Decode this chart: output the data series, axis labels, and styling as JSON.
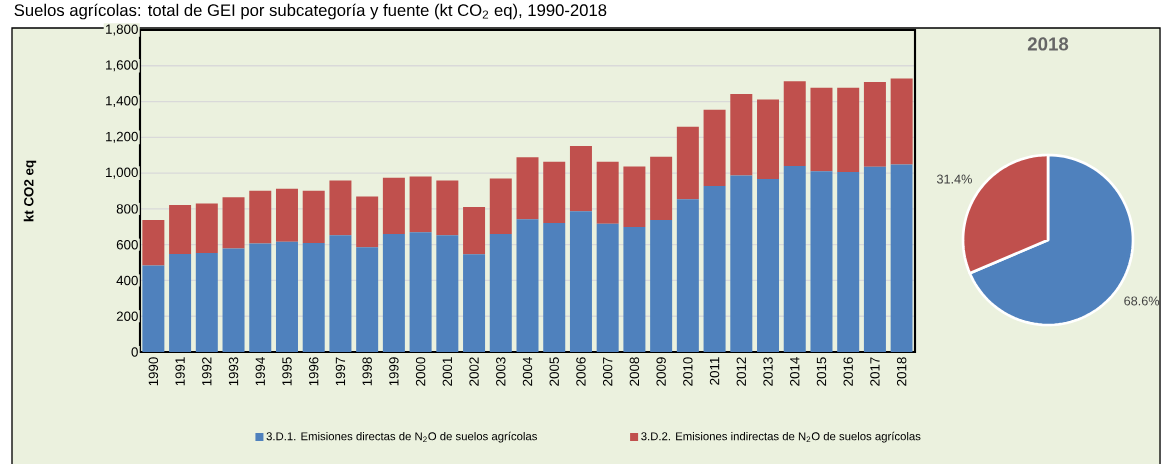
{
  "chart_data": [
    {
      "type": "bar",
      "title": "Suelos agrícolas: total de GEI por subcategoría y fuente (kt CO$_{2}$ eq), 1990-2018",
      "ylabel": "kt CO2 eq",
      "categories": [
        "1990",
        "1991",
        "1992",
        "1993",
        "1994",
        "1995",
        "1996",
        "1997",
        "1998",
        "1999",
        "2000",
        "2001",
        "2002",
        "2003",
        "2004",
        "2005",
        "2006",
        "2007",
        "2008",
        "2009",
        "2010",
        "2011",
        "2012",
        "2013",
        "2014",
        "2015",
        "2016",
        "2017",
        "2018"
      ],
      "stacked": true,
      "ylim": [
        0,
        1800
      ],
      "yticks": [
        0,
        200,
        400,
        600,
        800,
        {
          "value": 1000,
          "label": "1,000"
        },
        {
          "value": 1200,
          "label": "1,200"
        },
        {
          "value": 1400,
          "label": "1,400"
        },
        {
          "value": 1600,
          "label": "1,600"
        },
        {
          "value": 1800,
          "label": "1,800"
        }
      ],
      "grid": "y",
      "legend": "bottom",
      "series": [
        {
          "name": "3.D.1. Emisiones directas de N$_{2}$O de suelos agrícolas",
          "color": "#4f81bd",
          "values": [
            484,
            548,
            553,
            579,
            607,
            617,
            609,
            652,
            585,
            660,
            669,
            652,
            546,
            660,
            742,
            721,
            787,
            717,
            699,
            738,
            854,
            928,
            986,
            967,
            1040,
            1010,
            1006,
            1035,
            1048
          ]
        },
        {
          "name": "3.D.2. Emisiones indirectas de N$_{2}$O de suelos agrícolas",
          "color": "#c0504d",
          "values": [
            254,
            274,
            277,
            286,
            294,
            295,
            292,
            307,
            284,
            314,
            312,
            307,
            265,
            310,
            346,
            342,
            364,
            346,
            338,
            353,
            405,
            426,
            456,
            445,
            473,
            467,
            471,
            474,
            481
          ]
        }
      ]
    },
    {
      "type": "pie",
      "title": "2018",
      "categories": [
        null,
        null
      ],
      "values": [
        68.6,
        31.4
      ],
      "colors": [
        "#4f81bd",
        "#c0504d"
      ],
      "value_labels": [
        "68.6%",
        "31.4%"
      ]
    }
  ]
}
